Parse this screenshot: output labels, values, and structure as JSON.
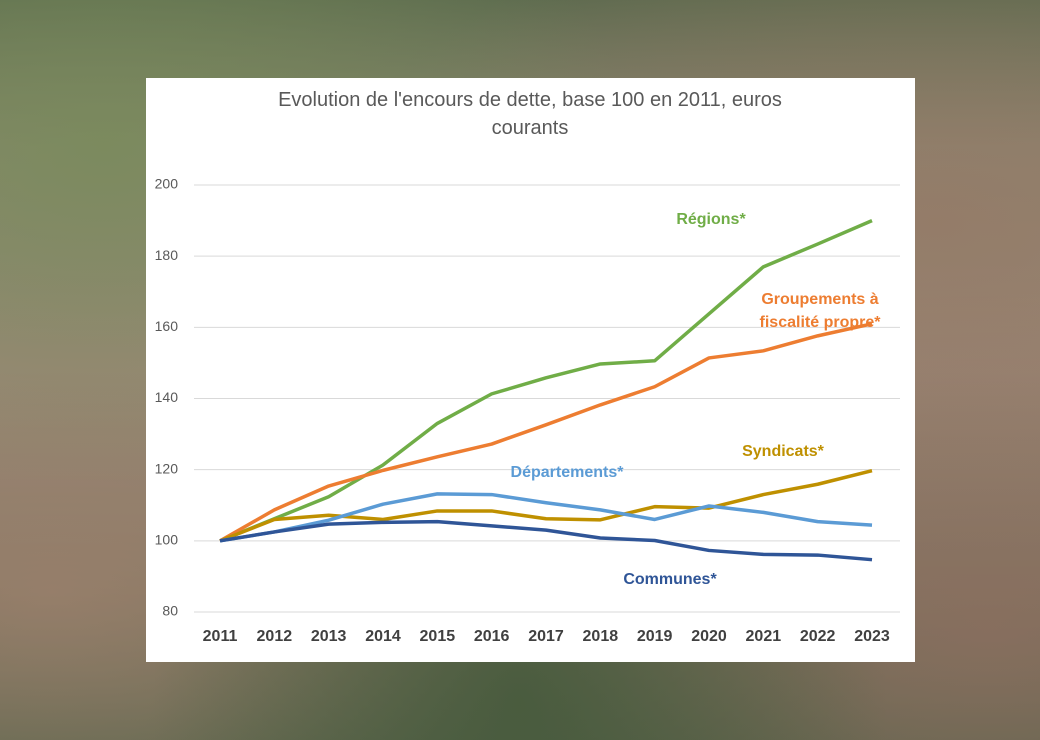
{
  "chart_data": {
    "type": "line",
    "title": "Evolution de l'encours de dette, base 100 en 2011, euros courants",
    "categories": [
      "2011",
      "2012",
      "2013",
      "2014",
      "2015",
      "2016",
      "2017",
      "2018",
      "2019",
      "2020",
      "2021",
      "2022",
      "2023"
    ],
    "ylim": [
      80,
      200
    ],
    "yticks": [
      80,
      100,
      120,
      140,
      160,
      180,
      200
    ],
    "grid": true,
    "series": [
      {
        "name": "Régions*",
        "color": "#70ad47",
        "values": [
          100,
          106.2,
          112.4,
          121.3,
          133,
          141.3,
          145.8,
          149.7,
          150.6,
          163.8,
          177,
          183.4,
          190
        ]
      },
      {
        "name": "Groupements à fiscalité propre*",
        "color": "#ed7d31",
        "values": [
          100,
          108.7,
          115.4,
          119.8,
          123.6,
          127.2,
          132.6,
          138.2,
          143.3,
          151.4,
          153.4,
          157.6,
          161
        ]
      },
      {
        "name": "Syndicats*",
        "color": "#bf9000",
        "values": [
          100,
          106,
          107.2,
          106,
          108.4,
          108.4,
          106.2,
          105.9,
          109.6,
          109.2,
          113,
          115.9,
          119.7
        ]
      },
      {
        "name": "Départements*",
        "color": "#5b9bd5",
        "values": [
          100,
          102.5,
          105.8,
          110.3,
          113.2,
          113,
          110.7,
          108.7,
          106,
          109.8,
          108,
          105.4,
          104.4
        ]
      },
      {
        "name": "Communes*",
        "color": "#2f5597",
        "values": [
          100,
          102.5,
          104.7,
          105.2,
          105.4,
          104.2,
          103,
          100.8,
          100.1,
          97.3,
          96.2,
          96,
          94.7
        ]
      }
    ]
  }
}
